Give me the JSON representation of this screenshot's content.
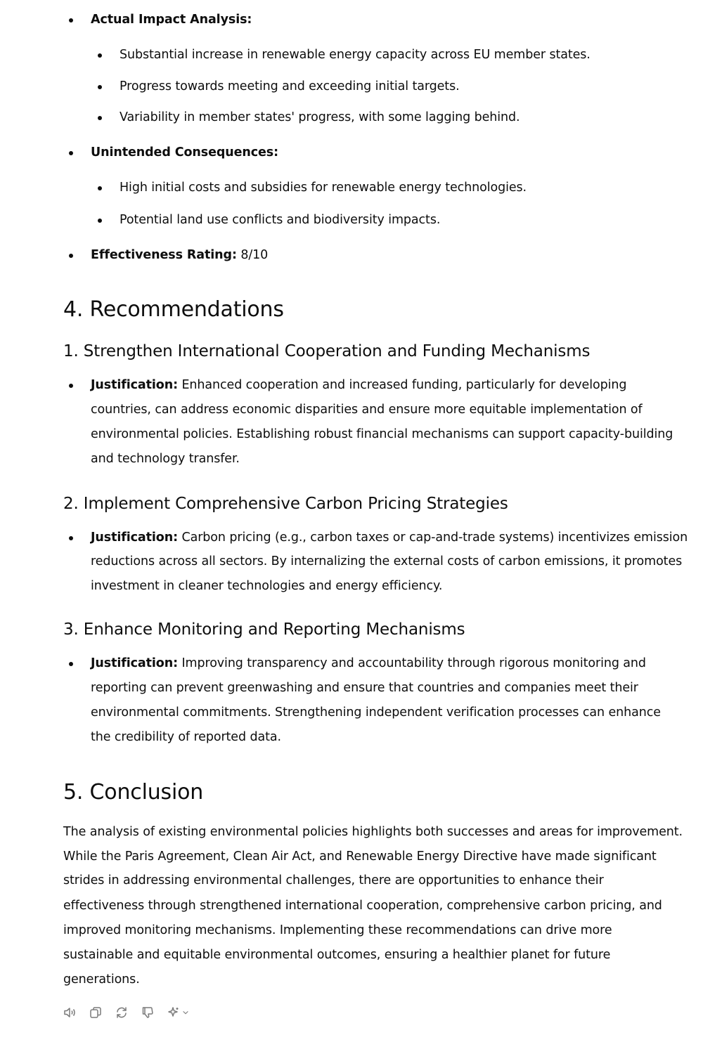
{
  "impact": {
    "actual_label": "Actual Impact Analysis:",
    "actual_items": [
      "Substantial increase in renewable energy capacity across EU member states.",
      "Progress towards meeting and exceeding initial targets.",
      "Variability in member states' progress, with some lagging behind."
    ],
    "unintended_label": "Unintended Consequences:",
    "unintended_items": [
      "High initial costs and subsidies for renewable energy technologies.",
      "Potential land use conflicts and biodiversity impacts."
    ],
    "rating_label": "Effectiveness Rating:",
    "rating_value": " 8/10"
  },
  "recommendations": {
    "heading": "4. Recommendations",
    "items": [
      {
        "title": "1. Strengthen International Cooperation and Funding Mechanisms",
        "label": "Justification:",
        "lines": [
          " Enhanced cooperation and increased funding, particularly for developing",
          "countries, can address economic disparities and ensure more equitable implementation of",
          "environmental policies. Establishing robust financial mechanisms can support capacity-building",
          "and technology transfer."
        ]
      },
      {
        "title": "2. Implement Comprehensive Carbon Pricing Strategies",
        "label": "Justification:",
        "lines": [
          " Carbon pricing (e.g., carbon taxes or cap-and-trade systems) incentivizes emission",
          "reductions across all sectors. By internalizing the external costs of carbon emissions, it promotes",
          "investment in cleaner technologies and energy efficiency."
        ]
      },
      {
        "title": "3. Enhance Monitoring and Reporting Mechanisms",
        "label": "Justification:",
        "lines": [
          " Improving transparency and accountability through rigorous monitoring and",
          "reporting can prevent greenwashing and ensure that countries and companies meet their",
          "environmental commitments. Strengthening independent verification processes can enhance",
          "the credibility of reported data."
        ]
      }
    ]
  },
  "conclusion": {
    "heading": "5. Conclusion",
    "lines": [
      "The analysis of existing environmental policies highlights both successes and areas for improvement.",
      "While the Paris Agreement, Clean Air Act, and Renewable Energy Directive have made significant",
      "strides in addressing environmental challenges, there are opportunities to enhance their",
      "effectiveness through strengthened international cooperation, comprehensive carbon pricing, and",
      "improved monitoring mechanisms. Implementing these recommendations can drive more",
      "sustainable and equitable environmental outcomes, ensuring a healthier planet for future",
      "generations."
    ]
  },
  "toolbar": {
    "icons": [
      "speaker-icon",
      "copy-icon",
      "regenerate-icon",
      "thumbs-down-icon",
      "sparkle-model-icon"
    ]
  }
}
